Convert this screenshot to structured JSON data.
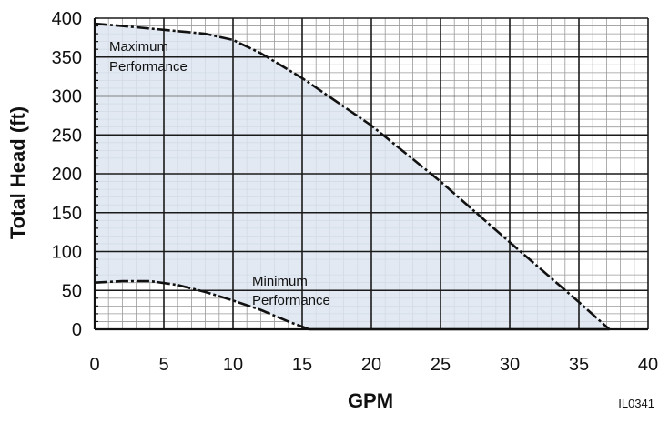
{
  "chart_data": {
    "type": "area",
    "xlabel": "GPM",
    "ylabel": "Total Head (ft)",
    "xlim": [
      0,
      40
    ],
    "ylim": [
      0,
      400
    ],
    "x_ticks": [
      0,
      5,
      10,
      15,
      20,
      25,
      30,
      35,
      40
    ],
    "y_ticks": [
      0,
      50,
      100,
      150,
      200,
      250,
      300,
      350,
      400
    ],
    "x_major_step": 5,
    "x_minor_step": 1,
    "y_major_step": 50,
    "y_minor_step": 10,
    "grid": true,
    "series": [
      {
        "name": "Maximum Performance",
        "label_lines": [
          "Maximum",
          "Performance"
        ],
        "x": [
          0,
          2,
          5,
          8,
          10,
          12,
          15,
          20,
          25,
          30,
          35,
          37.2
        ],
        "values": [
          393,
          390,
          385,
          380,
          372,
          355,
          323,
          262,
          190,
          112,
          35,
          0
        ]
      },
      {
        "name": "Minimum Performance",
        "label_lines": [
          "Minimum",
          "Performance"
        ],
        "x": [
          0,
          2,
          4,
          6,
          8,
          10,
          12,
          14,
          15.5
        ],
        "values": [
          60,
          62,
          62,
          57,
          48,
          37,
          25,
          10,
          0
        ]
      }
    ],
    "fill_color": "#dde5f1",
    "grid_major_color": "#1a1a1a",
    "grid_minor_color": "#9a9a9a",
    "line_color": "#111111"
  },
  "figure_code": "IL0341"
}
